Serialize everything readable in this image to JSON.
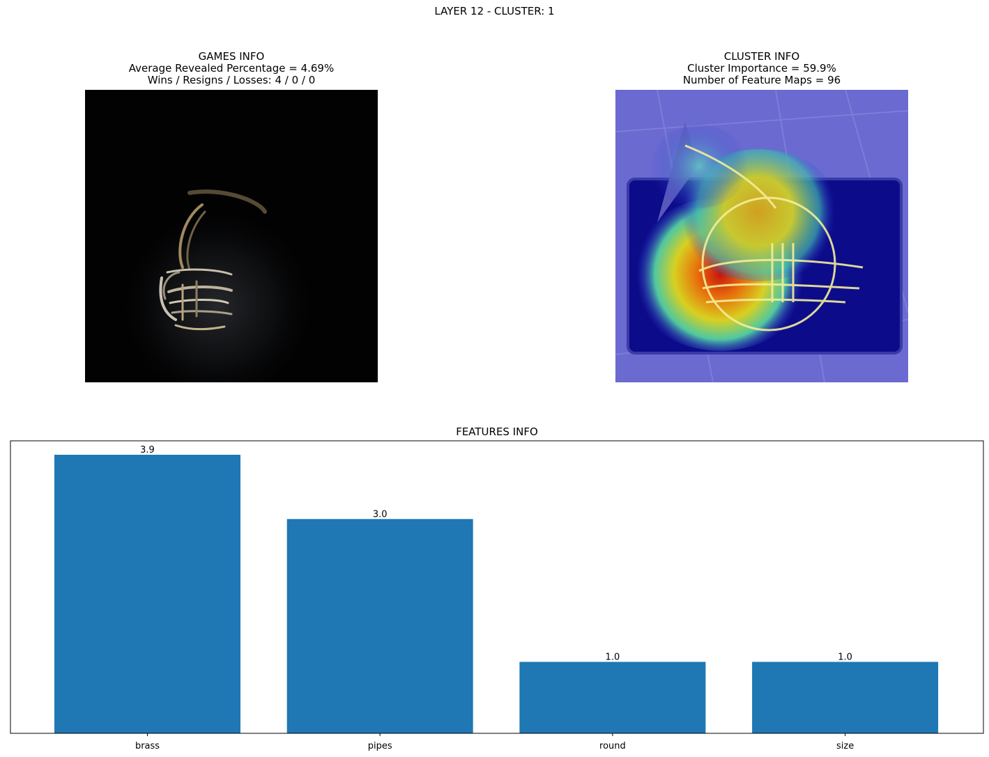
{
  "figure": {
    "suptitle": "LAYER 12 - CLUSTER: 1"
  },
  "games_info": {
    "title": "GAMES INFO",
    "line1": "Average Revealed Percentage = 4.69%",
    "line2": "Wins / Resigns / Losses: 4 / 0 / 0"
  },
  "cluster_info": {
    "title": "CLUSTER INFO",
    "line1": "Cluster Importance = 59.9%",
    "line2": "Number of Feature Maps = 96"
  },
  "chart_data": {
    "type": "bar",
    "title": "FEATURES INFO",
    "categories": [
      "brass",
      "pipes",
      "round",
      "size"
    ],
    "values": [
      3.9,
      3.0,
      1.0,
      1.0
    ],
    "data_labels": [
      "3.9",
      "3.0",
      "1.0",
      "1.0"
    ],
    "ylim": [
      0,
      4.095
    ],
    "bar_color": "#1f77b4",
    "grid": false,
    "y_ticks_visible": false
  }
}
